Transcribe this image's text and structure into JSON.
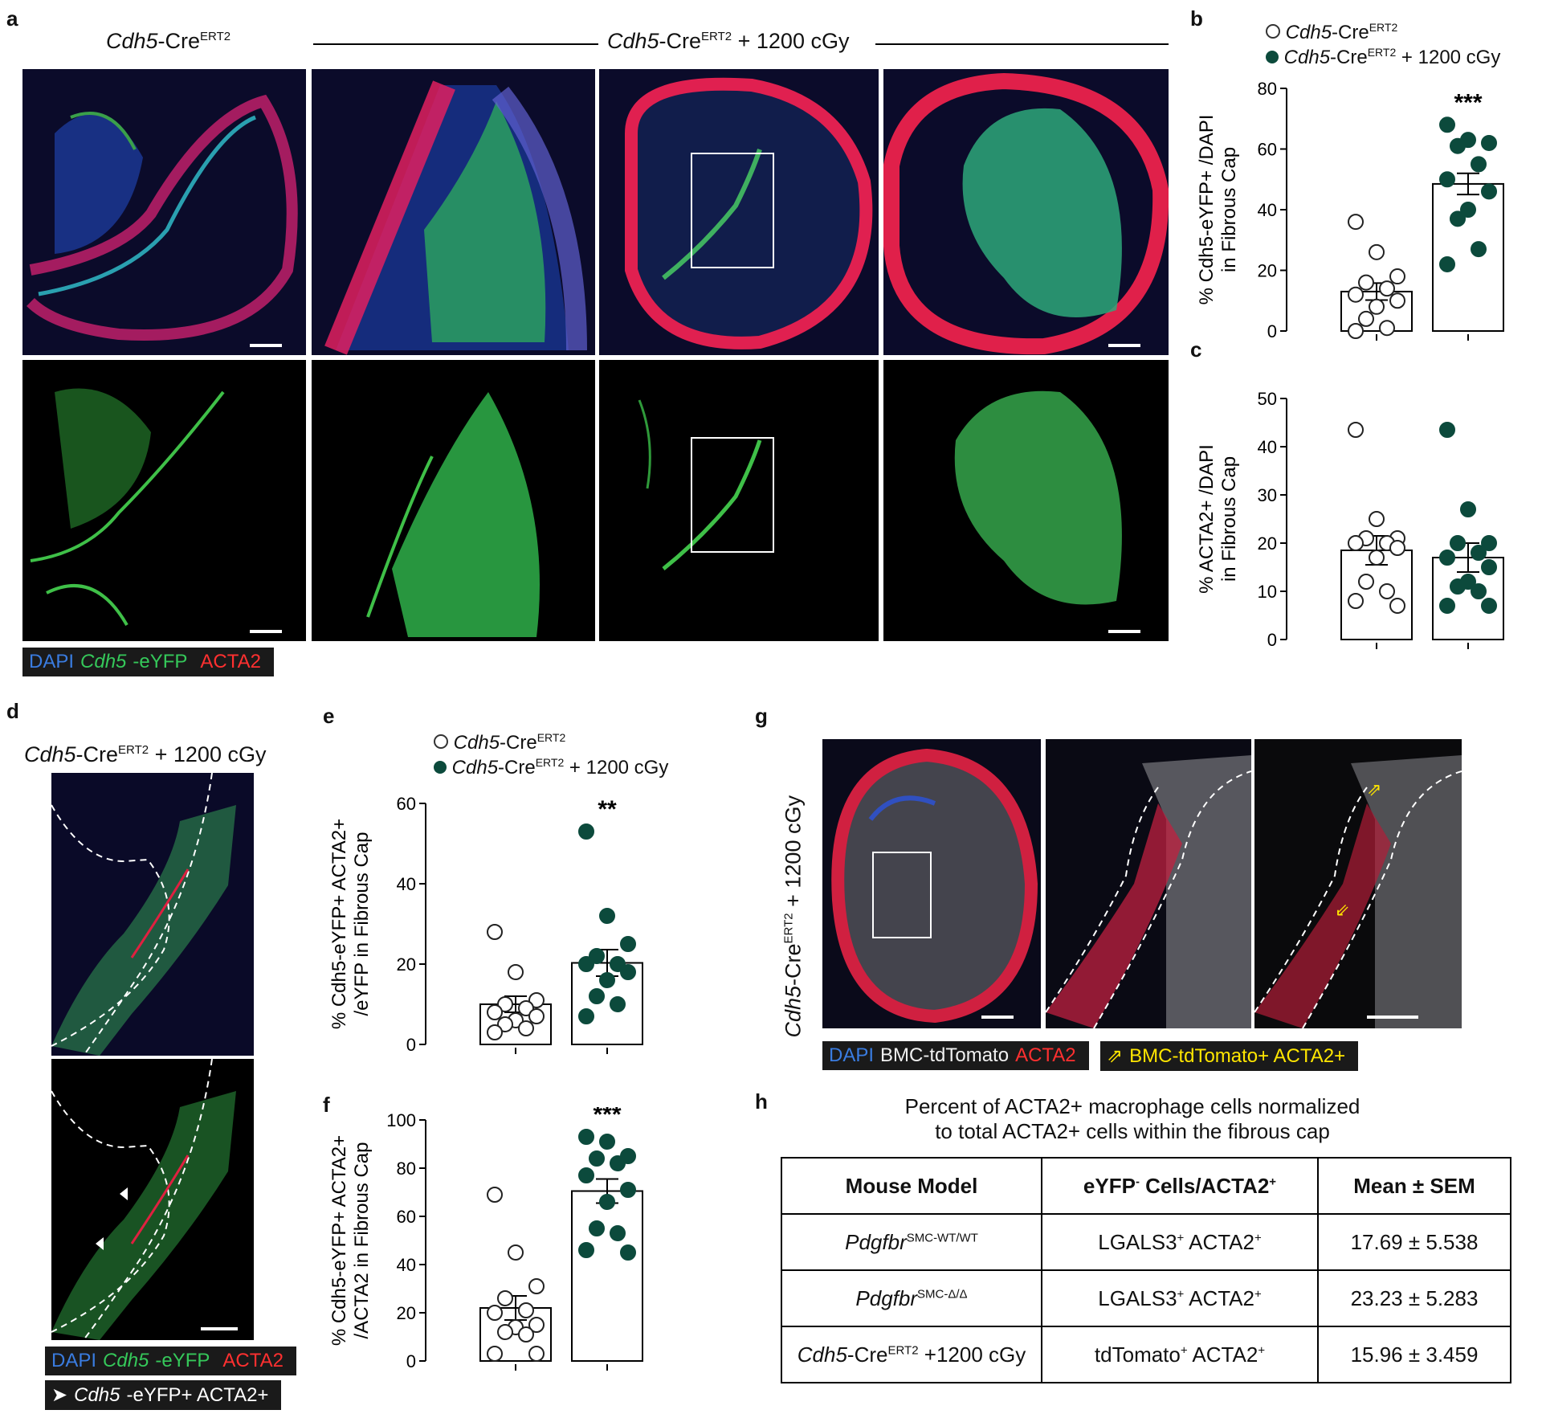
{
  "panels": {
    "a": "a",
    "b": "b",
    "c": "c",
    "d": "d",
    "e": "e",
    "f": "f",
    "g": "g",
    "h": "h"
  },
  "panel_a": {
    "header_left_italic": "Cdh5",
    "header_left_rest": "-Cre",
    "header_left_sup": "ERT2",
    "header_right_italic": "Cdh5",
    "header_right_rest": "-Cre",
    "header_right_sup": "ERT2",
    "header_right_suffix": " + 1200 cGy",
    "legend": {
      "dapi": "DAPI",
      "eyfp_italic": "Cdh5",
      "eyfp_rest": "-eYFP",
      "acta2": "ACTA2"
    }
  },
  "panel_d": {
    "title_italic": "Cdh5",
    "title_rest": "-Cre",
    "title_sup": "ERT2",
    "title_suffix": " + 1200 cGy",
    "legend": {
      "dapi": "DAPI",
      "eyfp_italic": "Cdh5",
      "eyfp_rest": "-eYFP",
      "acta2": "ACTA2"
    },
    "legend2": {
      "arrow": "➤",
      "italic": "Cdh5",
      "rest": "-eYFP+ ACTA2+"
    }
  },
  "panel_g": {
    "ylabel_italic": "Cdh5",
    "ylabel_rest": "-Cre",
    "ylabel_sup": "ERT2",
    "ylabel_suffix": " + 1200 cGy",
    "legend": {
      "dapi": "DAPI",
      "bmc": "BMC-tdTomato",
      "acta2": "ACTA2"
    },
    "legend2": {
      "arrow": "⇗",
      "text": "BMC-tdTomato+ ACTA2+"
    }
  },
  "panel_h": {
    "title_line1": "Percent of ACTA2+ macrophage cells normalized",
    "title_line2": "to total ACTA2+ cells within the fibrous cap",
    "headers": [
      "Mouse Model",
      "eYFP",
      "-",
      " Cells/ACTA2",
      "+",
      "Mean ± SEM"
    ],
    "rows": [
      {
        "model_italic": "Pdgfbr",
        "model_sup": "SMC-WT/WT",
        "model_rest": "",
        "cells": "LGALS3",
        "cells_sup1": "+",
        "cells2": " ACTA2",
        "cells_sup2": "+",
        "mean": "17.69 ± 5.538"
      },
      {
        "model_italic": "Pdgfbr",
        "model_sup": "SMC-Δ/Δ",
        "model_rest": "",
        "cells": "LGALS3",
        "cells_sup1": "+",
        "cells2": " ACTA2",
        "cells_sup2": "+",
        "mean": "23.23 ± 5.283"
      },
      {
        "model_italic": "Cdh5",
        "model_sup": "ERT2",
        "model_pre": "-Cre",
        "model_rest": " +1200 cGy",
        "cells": "tdTomato",
        "cells_sup1": "+",
        "cells2": " ACTA2",
        "cells_sup2": "+",
        "mean": "15.96 ± 3.459"
      }
    ]
  },
  "legend_bce": {
    "ctrl_italic": "Cdh5",
    "ctrl_rest": "-Cre",
    "ctrl_sup": "ERT2",
    "irr_italic": "Cdh5",
    "irr_rest": "-Cre",
    "irr_sup": "ERT2",
    "irr_suffix": " + 1200 cGy"
  },
  "colors": {
    "control_fill": "#ffffff",
    "irradiated_fill": "#0c4a3c",
    "bar_edge": "#000000"
  },
  "chart_data": [
    {
      "panel": "b",
      "type": "bar",
      "categories": [
        "Cdh5-CreERT2",
        "Cdh5-CreERT2 + 1200 cGy"
      ],
      "ylabel_line1": "% Cdh5-eYFP+ /DAPI",
      "ylabel_line2": "in Fibrous Cap",
      "ylim": [
        0,
        80
      ],
      "yticks": [
        0,
        20,
        40,
        60,
        80
      ],
      "bars": [
        13,
        48.5
      ],
      "sem": [
        2.8,
        3.5
      ],
      "significance": "***",
      "points": [
        [
          36,
          26,
          18,
          16,
          14,
          12,
          10,
          8,
          4,
          1,
          0
        ],
        [
          68,
          63,
          62,
          61,
          55,
          50,
          46,
          40,
          37,
          27,
          22
        ]
      ]
    },
    {
      "panel": "c",
      "type": "bar",
      "categories": [
        "Cdh5-CreERT2",
        "Cdh5-CreERT2 + 1200 cGy"
      ],
      "ylabel_line1": "% ACTA2+ /DAPI",
      "ylabel_line2": "in Fibrous Cap",
      "ylim": [
        0,
        50
      ],
      "yticks": [
        0,
        10,
        20,
        30,
        40,
        50
      ],
      "bars": [
        18.5,
        17
      ],
      "sem": [
        3,
        3
      ],
      "points": [
        [
          43.5,
          25,
          21,
          21,
          20,
          20,
          19,
          17,
          12,
          10,
          8,
          7
        ],
        [
          43.5,
          27,
          20,
          20,
          18,
          17,
          15,
          12,
          11,
          10,
          7,
          7
        ]
      ]
    },
    {
      "panel": "e",
      "type": "bar",
      "categories": [
        "Cdh5-CreERT2",
        "Cdh5-CreERT2 + 1200 cGy"
      ],
      "ylabel_line1": "% Cdh5-eYFP+ ACTA2+",
      "ylabel_line2": "/eYFP in Fibrous Cap",
      "ylim": [
        0,
        60
      ],
      "yticks": [
        0,
        20,
        40,
        60
      ],
      "bars": [
        10,
        20.3
      ],
      "sem": [
        2,
        3.3
      ],
      "significance": "**",
      "points": [
        [
          28,
          18,
          11,
          10,
          9,
          8,
          7,
          6,
          5,
          4,
          3
        ],
        [
          53,
          32,
          25,
          22,
          20,
          20,
          18,
          16,
          12,
          10,
          7
        ]
      ]
    },
    {
      "panel": "f",
      "type": "bar",
      "categories": [
        "Cdh5-CreERT2",
        "Cdh5-CreERT2 + 1200 cGy"
      ],
      "ylabel_line1": "% Cdh5-eYFP+ ACTA2+",
      "ylabel_line2": "/ACTA2 in Fibrous Cap",
      "ylim": [
        0,
        100
      ],
      "yticks": [
        0,
        20,
        40,
        60,
        80,
        100
      ],
      "bars": [
        22,
        70.5
      ],
      "sem": [
        5,
        5
      ],
      "significance": "***",
      "points": [
        [
          69,
          45,
          31,
          26,
          21,
          20,
          15,
          14,
          12,
          11,
          3,
          3
        ],
        [
          93,
          91,
          85,
          84,
          82,
          77,
          71,
          66,
          55,
          53,
          46,
          45
        ]
      ]
    }
  ]
}
